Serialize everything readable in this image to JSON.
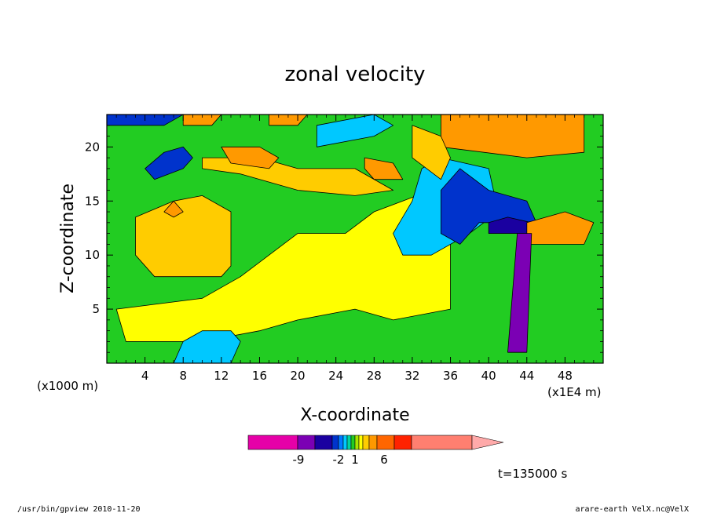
{
  "chart_data": {
    "type": "heatmap",
    "title": "zonal velocity",
    "xlabel": "X-coordinate",
    "ylabel": "Z-coordinate",
    "x_unit_left": "(x1000 m)",
    "x_unit_right": "(x1E4 m)",
    "xlim": [
      0,
      52
    ],
    "ylim": [
      0,
      23
    ],
    "x_ticks": [
      4,
      8,
      12,
      16,
      20,
      24,
      28,
      32,
      36,
      40,
      44,
      48
    ],
    "y_ticks": [
      5,
      10,
      15,
      20
    ],
    "time_label": "t=135000 s",
    "colorbar": {
      "labels": [
        {
          "text": "-9",
          "value": -9
        },
        {
          "text": "-2",
          "value": -2
        },
        {
          "text": "1",
          "value": 1
        },
        {
          "text": "6",
          "value": 6
        }
      ],
      "colors": [
        "#e600a8",
        "#7b00b4",
        "#1a00a0",
        "#0033cc",
        "#0078ff",
        "#00c8ff",
        "#00d4a0",
        "#22cc22",
        "#a6e600",
        "#ffff00",
        "#ffcc00",
        "#ff9900",
        "#ff6600",
        "#ff2200",
        "#ff7f70",
        "#ffaaaa"
      ]
    },
    "regions": [
      {
        "color": "#22cc22",
        "points": [
          [
            0,
            0
          ],
          [
            52,
            0
          ],
          [
            52,
            23
          ],
          [
            0,
            23
          ]
        ]
      },
      {
        "color": "#ffff00",
        "points": [
          [
            1,
            5
          ],
          [
            10,
            6
          ],
          [
            14,
            8
          ],
          [
            20,
            12
          ],
          [
            25,
            12
          ],
          [
            28,
            14
          ],
          [
            34,
            16
          ],
          [
            36,
            13
          ],
          [
            36,
            5
          ],
          [
            30,
            4
          ],
          [
            26,
            5
          ],
          [
            20,
            4
          ],
          [
            16,
            3
          ],
          [
            10,
            2
          ],
          [
            2,
            2
          ],
          [
            1,
            5
          ]
        ]
      },
      {
        "color": "#ffcc00",
        "points": [
          [
            3,
            13.5
          ],
          [
            7,
            15
          ],
          [
            10,
            15.5
          ],
          [
            13,
            14
          ],
          [
            13,
            9
          ],
          [
            12,
            8
          ],
          [
            5,
            8
          ],
          [
            3,
            10
          ]
        ]
      },
      {
        "color": "#ffcc00",
        "points": [
          [
            10,
            19
          ],
          [
            16,
            19
          ],
          [
            20,
            18
          ],
          [
            26,
            18
          ],
          [
            30,
            16
          ],
          [
            26,
            15.5
          ],
          [
            20,
            16
          ],
          [
            14,
            17.5
          ],
          [
            10,
            18
          ]
        ]
      },
      {
        "color": "#ff9900",
        "points": [
          [
            12,
            20
          ],
          [
            16,
            20
          ],
          [
            18,
            19
          ],
          [
            17,
            18
          ],
          [
            13,
            18.5
          ]
        ]
      },
      {
        "color": "#ff9900",
        "points": [
          [
            27,
            19
          ],
          [
            30,
            18.5
          ],
          [
            31,
            17
          ],
          [
            28,
            17
          ],
          [
            27,
            18
          ]
        ]
      },
      {
        "color": "#ff9900",
        "points": [
          [
            7,
            15
          ],
          [
            8,
            14
          ],
          [
            7,
            13.5
          ],
          [
            6,
            14
          ]
        ]
      },
      {
        "color": "#00c8ff",
        "points": [
          [
            7,
            0
          ],
          [
            13,
            0
          ],
          [
            14,
            2
          ],
          [
            13,
            3
          ],
          [
            10,
            3
          ],
          [
            8,
            2
          ]
        ]
      },
      {
        "color": "#00c8ff",
        "points": [
          [
            31,
            10
          ],
          [
            34,
            10
          ],
          [
            38,
            12
          ],
          [
            41,
            14
          ],
          [
            40,
            18
          ],
          [
            35,
            19
          ],
          [
            33,
            18
          ],
          [
            32,
            15
          ],
          [
            30,
            12
          ]
        ]
      },
      {
        "color": "#0033cc",
        "points": [
          [
            35,
            12
          ],
          [
            37,
            11
          ],
          [
            39,
            13
          ],
          [
            42,
            13
          ],
          [
            44,
            12
          ],
          [
            45,
            13
          ],
          [
            44,
            15
          ],
          [
            40,
            16
          ],
          [
            37,
            18
          ],
          [
            35,
            16
          ]
        ]
      },
      {
        "color": "#1a00a0",
        "points": [
          [
            40,
            12
          ],
          [
            43,
            12
          ],
          [
            44,
            11
          ],
          [
            44.5,
            13
          ],
          [
            42,
            13.5
          ],
          [
            40,
            13
          ]
        ]
      },
      {
        "color": "#ff9900",
        "points": [
          [
            44,
            11
          ],
          [
            50,
            11
          ],
          [
            51,
            13
          ],
          [
            48,
            14
          ],
          [
            44,
            13
          ]
        ]
      },
      {
        "color": "#ff9900",
        "points": [
          [
            35,
            20
          ],
          [
            44,
            19
          ],
          [
            50,
            19.5
          ],
          [
            50,
            23
          ],
          [
            35,
            23
          ]
        ]
      },
      {
        "color": "#ffcc00",
        "points": [
          [
            32,
            19
          ],
          [
            35,
            17
          ],
          [
            36,
            19
          ],
          [
            35,
            21
          ],
          [
            32,
            22
          ]
        ]
      },
      {
        "color": "#0033cc",
        "points": [
          [
            5,
            17
          ],
          [
            8,
            18
          ],
          [
            9,
            19
          ],
          [
            8,
            20
          ],
          [
            6,
            19.5
          ],
          [
            4,
            18
          ]
        ]
      },
      {
        "color": "#0033cc",
        "points": [
          [
            0,
            22
          ],
          [
            6,
            22
          ],
          [
            8,
            23
          ],
          [
            0,
            23
          ]
        ]
      },
      {
        "color": "#00c8ff",
        "points": [
          [
            22,
            20
          ],
          [
            28,
            21
          ],
          [
            30,
            22
          ],
          [
            28,
            23
          ],
          [
            22,
            22
          ]
        ]
      },
      {
        "color": "#ff9900",
        "points": [
          [
            8,
            22
          ],
          [
            11,
            22
          ],
          [
            12,
            23
          ],
          [
            8,
            23
          ]
        ]
      },
      {
        "color": "#ff9900",
        "points": [
          [
            17,
            22
          ],
          [
            20,
            22
          ],
          [
            21,
            23
          ],
          [
            17,
            23
          ]
        ]
      },
      {
        "color": "#7b00b4",
        "points": [
          [
            42,
            1
          ],
          [
            44,
            1
          ],
          [
            44.5,
            12
          ],
          [
            43,
            12
          ]
        ]
      }
    ]
  },
  "footer": {
    "left": "/usr/bin/gpview   2010-11-20",
    "right": "arare-earth_VelX.nc@VelX"
  }
}
